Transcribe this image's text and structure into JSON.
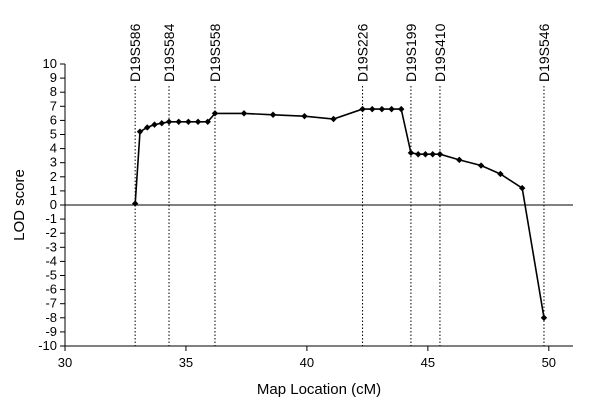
{
  "chart_data": {
    "type": "line",
    "title": "",
    "xlabel": "Map Location (cM)",
    "ylabel": "LOD score",
    "xlim": [
      30,
      51
    ],
    "ylim": [
      -10,
      10
    ],
    "x_ticks": [
      30,
      35,
      40,
      45,
      50
    ],
    "y_ticks": [
      10,
      9,
      8,
      7,
      6,
      5,
      4,
      3,
      2,
      1,
      0,
      -1,
      -2,
      -3,
      -4,
      -5,
      -6,
      -7,
      -8,
      -9,
      -10
    ],
    "grid": false,
    "legend": "none",
    "line_color": "#000000",
    "markers": [
      {
        "label": "D19S586",
        "x": 32.9
      },
      {
        "label": "D19S584",
        "x": 34.3
      },
      {
        "label": "D19S558",
        "x": 36.2
      },
      {
        "label": "D19S226",
        "x": 42.3
      },
      {
        "label": "D19S199",
        "x": 44.3
      },
      {
        "label": "D19S410",
        "x": 45.5
      },
      {
        "label": "D19S546",
        "x": 49.8
      }
    ],
    "series": [
      {
        "points": [
          [
            32.9,
            0.1
          ],
          [
            33.1,
            5.2
          ],
          [
            33.4,
            5.5
          ],
          [
            33.7,
            5.7
          ],
          [
            34.0,
            5.8
          ],
          [
            34.3,
            5.9
          ],
          [
            34.7,
            5.9
          ],
          [
            35.1,
            5.9
          ],
          [
            35.5,
            5.9
          ],
          [
            35.9,
            5.9
          ],
          [
            36.2,
            6.5
          ],
          [
            37.4,
            6.5
          ],
          [
            38.6,
            6.4
          ],
          [
            39.9,
            6.3
          ],
          [
            41.1,
            6.1
          ],
          [
            42.3,
            6.8
          ],
          [
            42.7,
            6.8
          ],
          [
            43.1,
            6.8
          ],
          [
            43.5,
            6.8
          ],
          [
            43.9,
            6.8
          ],
          [
            44.3,
            3.7
          ],
          [
            44.6,
            3.6
          ],
          [
            44.9,
            3.6
          ],
          [
            45.2,
            3.6
          ],
          [
            45.5,
            3.6
          ],
          [
            46.3,
            3.2
          ],
          [
            47.2,
            2.8
          ],
          [
            48.0,
            2.2
          ],
          [
            48.9,
            1.2
          ],
          [
            49.8,
            -8.0
          ]
        ]
      }
    ]
  }
}
